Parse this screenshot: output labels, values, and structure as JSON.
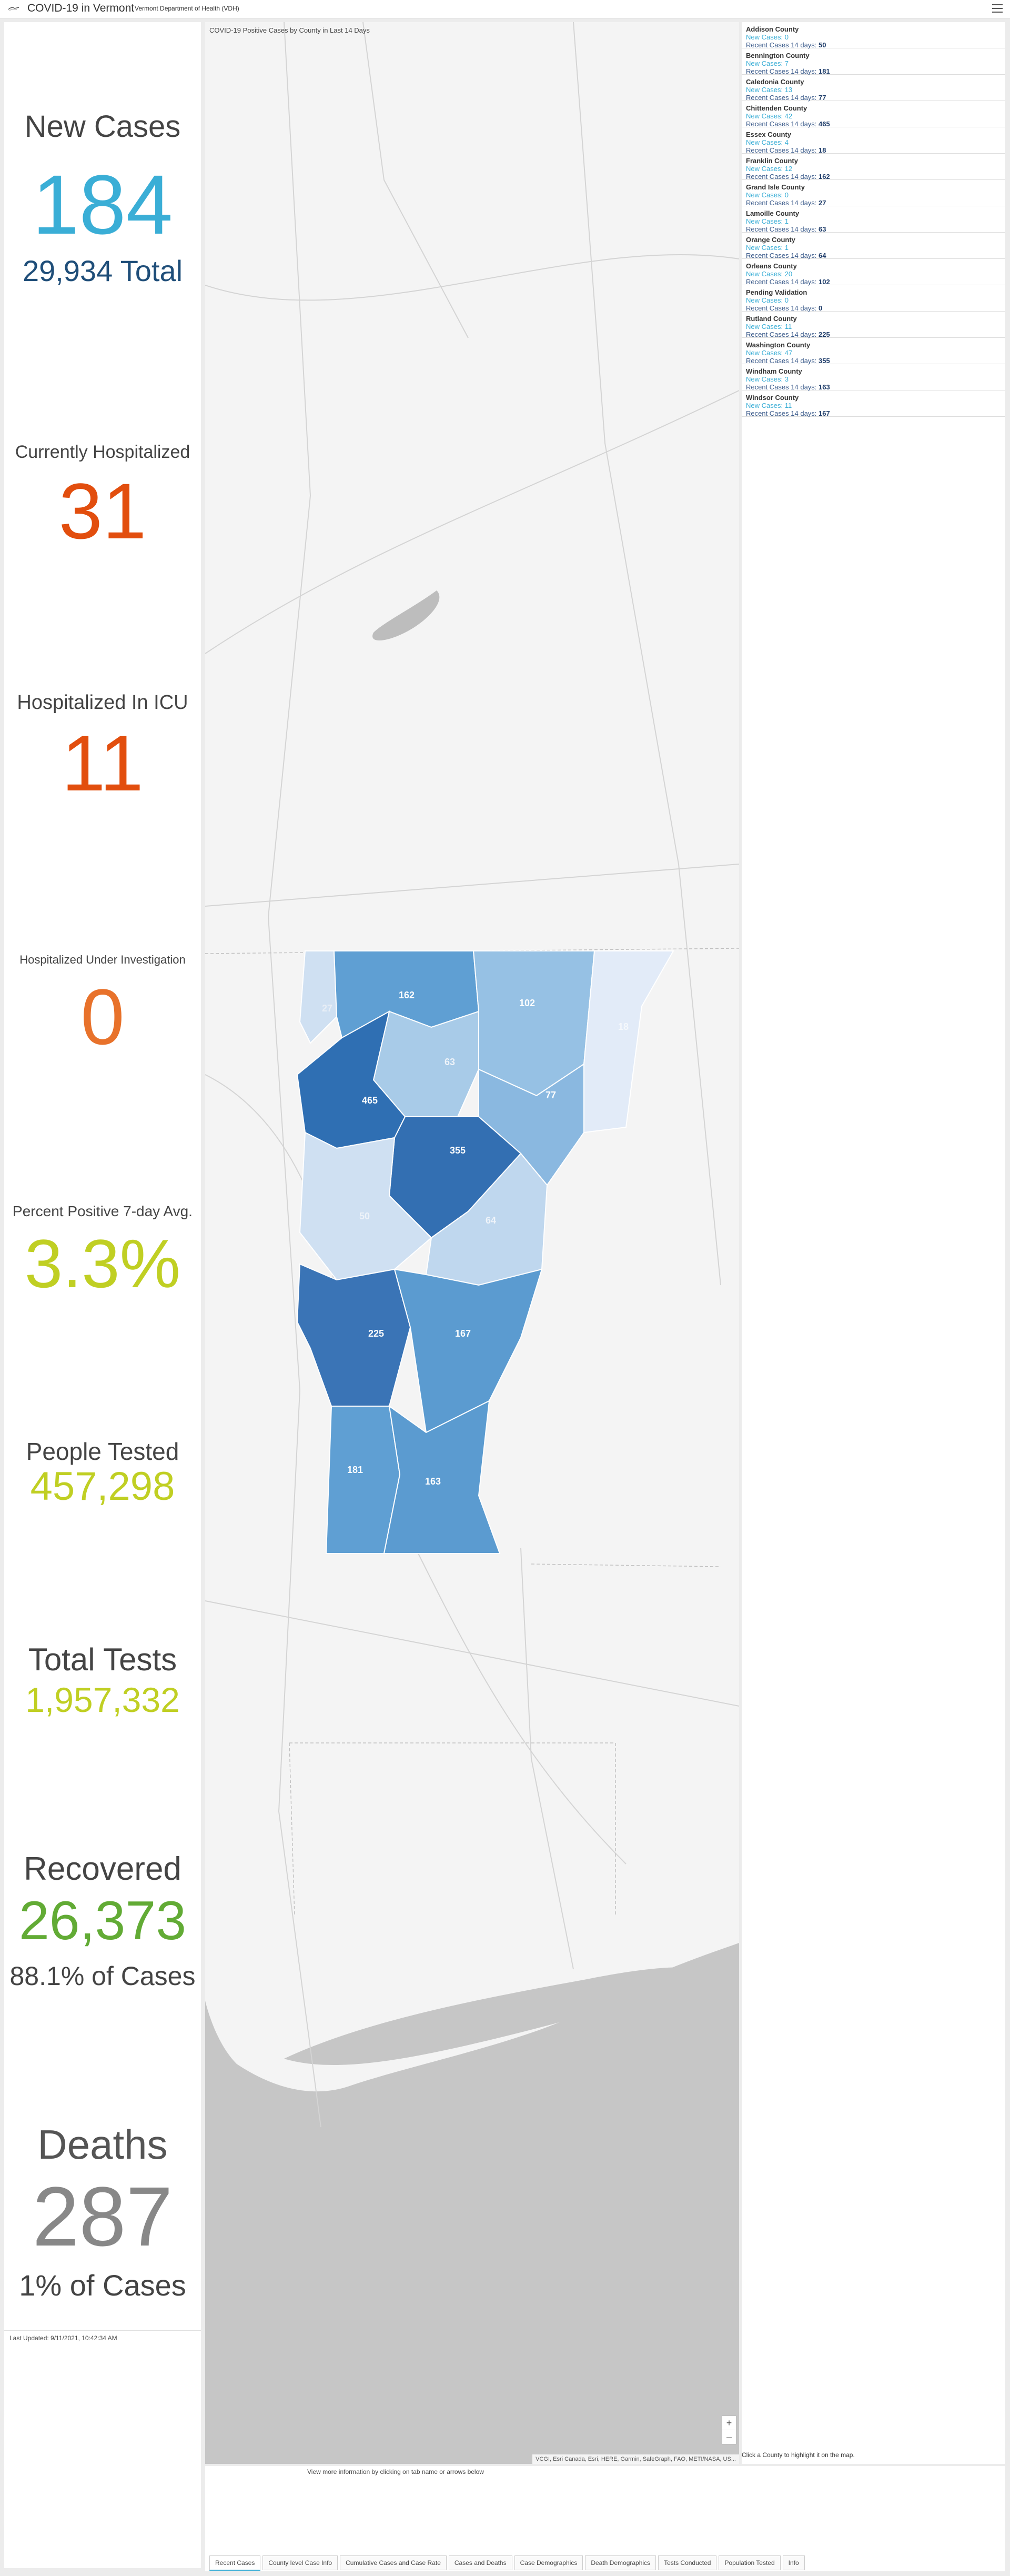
{
  "header": {
    "title": "COVID-19 in Vermont",
    "subtitle": "Vermont Department of Health (VDH)",
    "logo_icon": "hand-logo-icon",
    "menu_icon": "hamburger-menu-icon"
  },
  "stats": {
    "new_cases": {
      "label": "New Cases",
      "value": "184",
      "total": "29,934 Total",
      "color": "#3aaed6"
    },
    "hospitalized": {
      "label": "Currently Hospitalized",
      "value": "31",
      "color": "#e24e0e"
    },
    "icu": {
      "label": "Hospitalized In ICU",
      "value": "11",
      "color": "#e24e0e"
    },
    "investigation": {
      "label": "Hospitalized Under Investigation",
      "value": "0",
      "color": "#e8722b"
    },
    "percent_positive": {
      "label": "Percent Positive 7-day Avg.",
      "value": "3.3%",
      "color": "#c0cf23"
    },
    "people_tested": {
      "label": "People Tested",
      "value": "457,298",
      "color": "#c0cf23"
    },
    "total_tests": {
      "label": "Total Tests",
      "value": "1,957,332",
      "color": "#c0cf23"
    },
    "recovered": {
      "label": "Recovered",
      "value": "26,373",
      "percent": "88.1% of Cases",
      "color": "#62ab35"
    },
    "deaths": {
      "label": "Deaths",
      "value": "287",
      "percent": "1% of Cases",
      "color": "#888888"
    },
    "last_updated": "Last Updated: 9/11/2021, 10:42:34 AM"
  },
  "map": {
    "title": "COVID-19 Positive Cases by County in Last 14 Days",
    "attribution": "VCGI, Esri Canada, Esri, HERE, Garmin, SafeGraph, FAO, METI/NASA, US...",
    "zoom_in": "+",
    "zoom_out": "–",
    "click_hint": "Click a County to highlight it on the map.",
    "county_labels": [
      "27",
      "162",
      "102",
      "18",
      "63",
      "465",
      "77",
      "355",
      "50",
      "64",
      "225",
      "167",
      "181",
      "163"
    ]
  },
  "counties": {
    "new_cases_label": "New Cases:",
    "recent_label": "Recent Cases 14 days:",
    "items": [
      {
        "name": "Addison County",
        "new": "0",
        "recent": "50"
      },
      {
        "name": "Bennington County",
        "new": "7",
        "recent": "181"
      },
      {
        "name": "Caledonia County",
        "new": "13",
        "recent": "77"
      },
      {
        "name": "Chittenden County",
        "new": "42",
        "recent": "465"
      },
      {
        "name": "Essex County",
        "new": "4",
        "recent": "18"
      },
      {
        "name": "Franklin County",
        "new": "12",
        "recent": "162"
      },
      {
        "name": "Grand Isle County",
        "new": "0",
        "recent": "27"
      },
      {
        "name": "Lamoille County",
        "new": "1",
        "recent": "63"
      },
      {
        "name": "Orange County",
        "new": "1",
        "recent": "64"
      },
      {
        "name": "Orleans County",
        "new": "20",
        "recent": "102"
      },
      {
        "name": "Pending Validation",
        "new": "0",
        "recent": "0"
      },
      {
        "name": "Rutland County",
        "new": "11",
        "recent": "225"
      },
      {
        "name": "Washington County",
        "new": "47",
        "recent": "355"
      },
      {
        "name": "Windham County",
        "new": "3",
        "recent": "163"
      },
      {
        "name": "Windsor County",
        "new": "11",
        "recent": "167"
      }
    ]
  },
  "footer": {
    "note": "View more information by clicking on tab name or arrows below",
    "tabs": [
      "Recent Cases",
      "County level Case Info",
      "Cumulative Cases and Case Rate",
      "Cases and Deaths",
      "Case Demographics",
      "Death Demographics",
      "Tests Conducted",
      "Population Tested",
      "Info"
    ]
  }
}
